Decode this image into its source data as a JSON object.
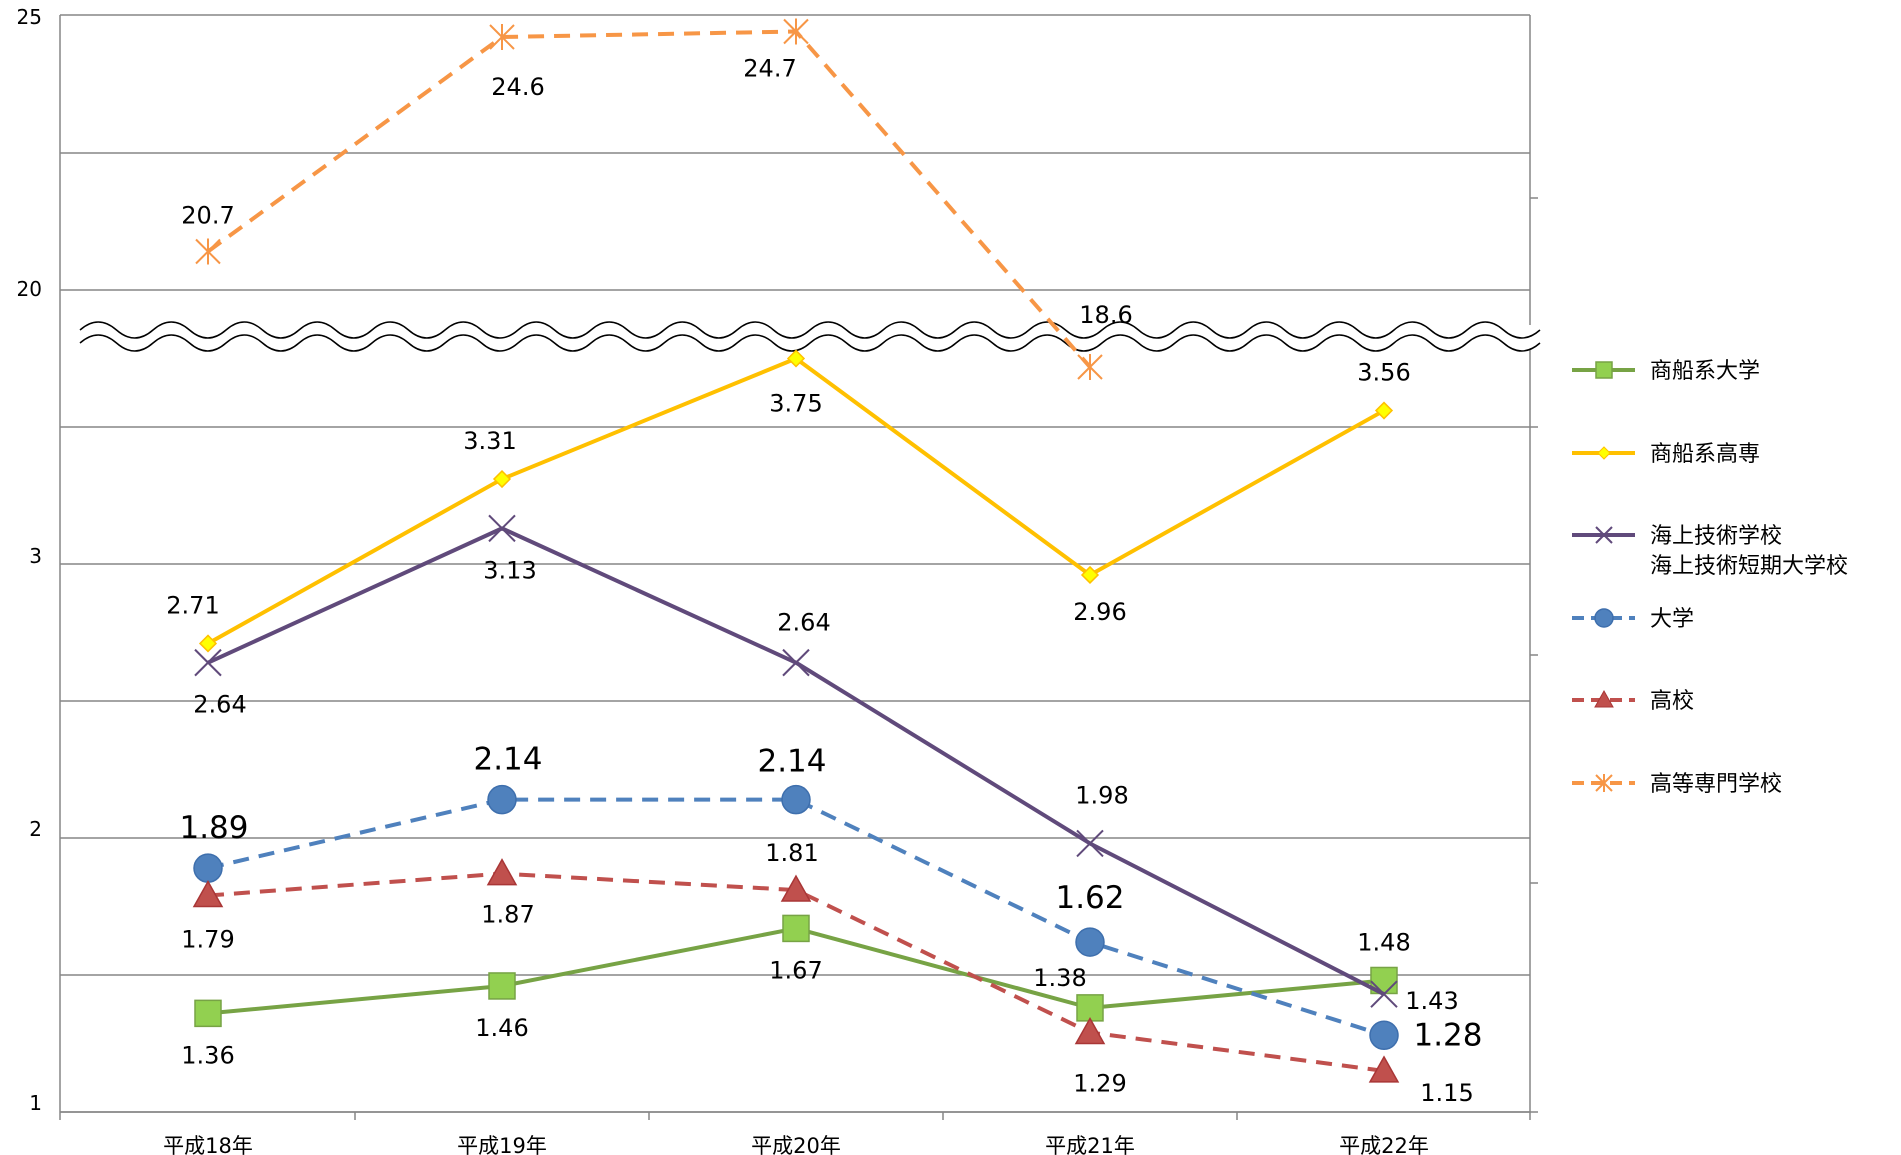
{
  "chart_data": {
    "type": "line",
    "title": "",
    "xlabel": "",
    "ylabel": "",
    "categories": [
      "平成18年",
      "平成19年",
      "平成20年",
      "平成21年",
      "平成22年"
    ],
    "y_axis": {
      "broken": true,
      "lower_ticks": [
        "1",
        "2",
        "3"
      ],
      "upper_ticks": [
        "20",
        "25"
      ],
      "lower_range": [
        1,
        4
      ],
      "upper_range": [
        20,
        25
      ]
    },
    "grid": true,
    "legend_position": "right",
    "series": [
      {
        "name": "商船系大学",
        "values": [
          1.36,
          1.46,
          1.67,
          1.38,
          1.48
        ],
        "labels": [
          "1.36",
          "1.46",
          "1.67",
          "1.38",
          "1.48"
        ],
        "color": "#77a345",
        "fill": "#92d050",
        "dash": false,
        "marker": "square"
      },
      {
        "name": "商船系高専",
        "values": [
          2.71,
          3.31,
          3.75,
          2.96,
          3.56
        ],
        "labels": [
          "2.71",
          "3.31",
          "3.75",
          "2.96",
          "3.56"
        ],
        "color": "#ffc000",
        "fill": "#ffff00",
        "dash": false,
        "marker": "diamond"
      },
      {
        "name": "海上技術学校",
        "name2": "海上技術短期大学校",
        "values": [
          2.64,
          3.13,
          2.64,
          1.98,
          1.43
        ],
        "labels": [
          "2.64",
          "3.13",
          "2.64",
          "1.98",
          "1.43"
        ],
        "color": "#604a7b",
        "fill": "#604a7b",
        "dash": false,
        "marker": "x"
      },
      {
        "name": "大学",
        "values": [
          1.89,
          2.14,
          2.14,
          1.62,
          1.28
        ],
        "labels": [
          "1.89",
          "2.14",
          "2.14",
          "1.62",
          "1.28"
        ],
        "color": "#3e6fad",
        "fill": "#4f81bd",
        "dash": true,
        "marker": "circle"
      },
      {
        "name": "高校",
        "values": [
          1.79,
          1.87,
          1.81,
          1.29,
          1.15
        ],
        "labels": [
          "1.79",
          "1.87",
          "1.81",
          "1.29",
          "1.15"
        ],
        "color": "#a93636",
        "fill": "#c0504d",
        "dash": true,
        "marker": "triangle"
      },
      {
        "name": "高等専門学校",
        "values": [
          20.7,
          24.6,
          24.7,
          18.6,
          null
        ],
        "labels": [
          "20.7",
          "24.6",
          "24.7",
          "18.6",
          null
        ],
        "color": "#de7d3a",
        "fill": "#f79646",
        "dash": true,
        "marker": "asterisk"
      }
    ]
  }
}
